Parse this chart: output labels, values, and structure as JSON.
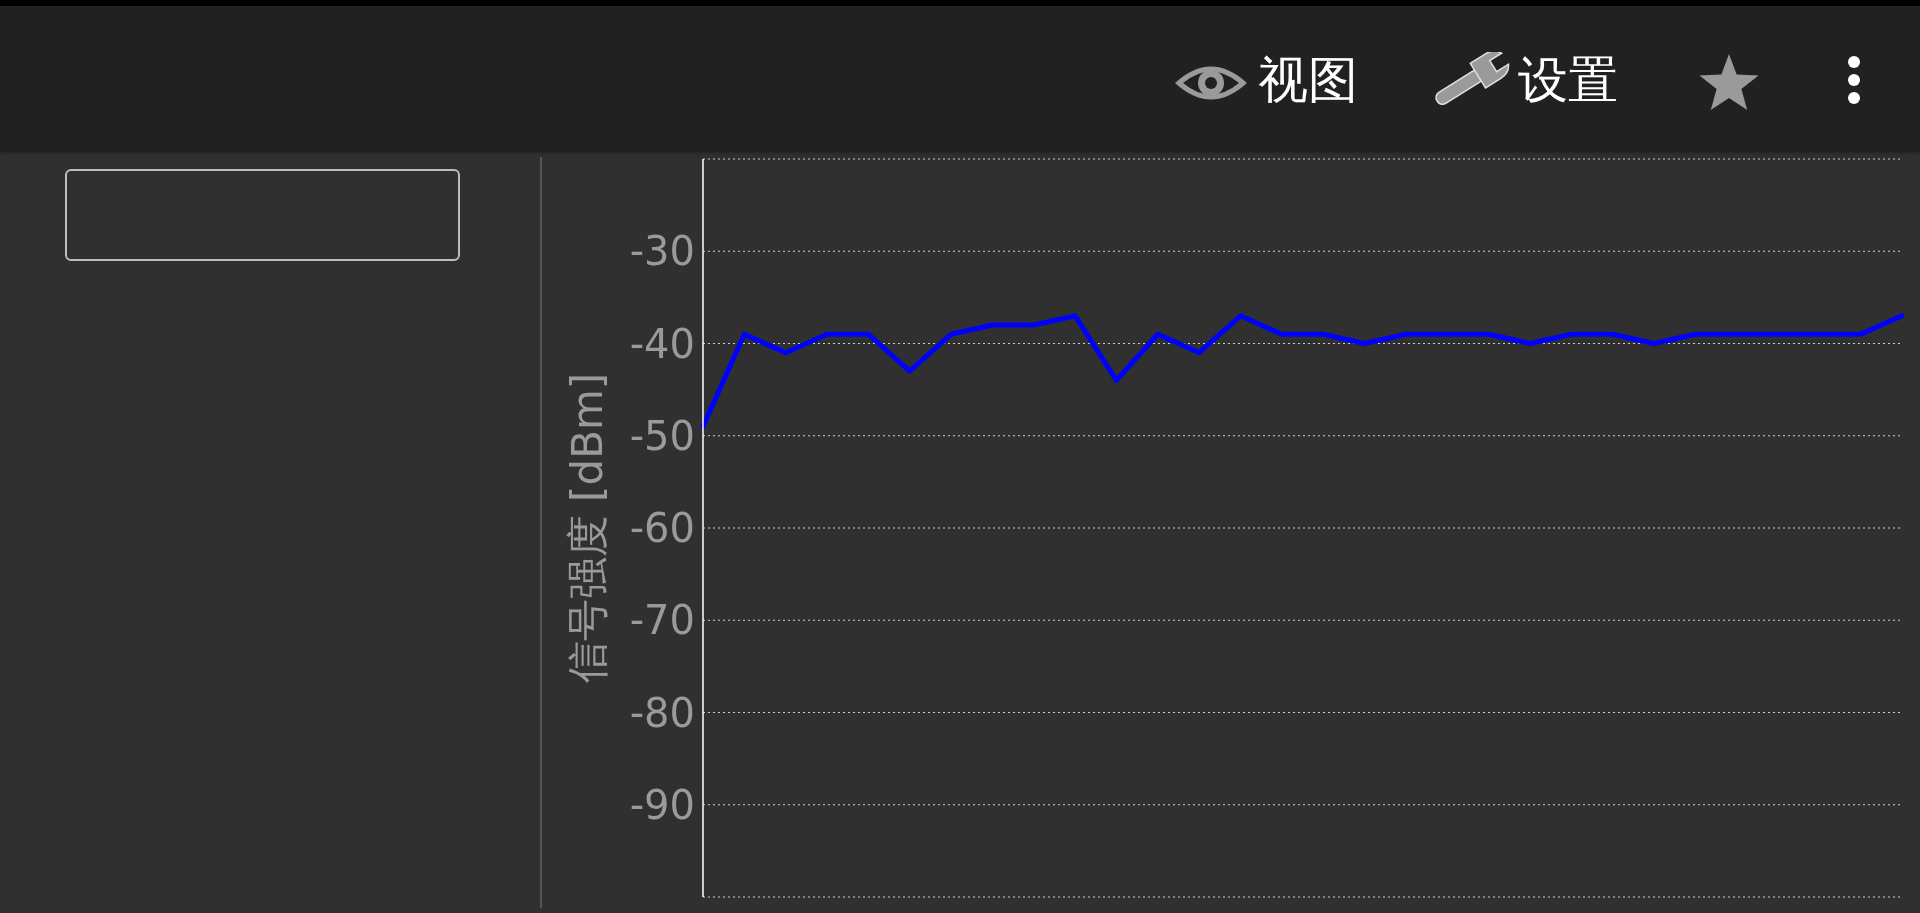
{
  "chart_data": {
    "type": "line",
    "ylabel": "信号强度 [dBm]",
    "categories": [
      null,
      null,
      null,
      null,
      null,
      null,
      null,
      null,
      null,
      null,
      null,
      null,
      null,
      null,
      null,
      null,
      null,
      null,
      null,
      null,
      null,
      null,
      null,
      null,
      null,
      null,
      null,
      null,
      null,
      null
    ],
    "series": [
      {
        "color": "#0000ff",
        "values": [
          -49,
          -39,
          -41,
          -39,
          -39,
          -43,
          -39,
          -38,
          -38,
          -37,
          -44,
          -39,
          -41,
          -37,
          -39,
          -39,
          -40,
          -39,
          -39,
          -39,
          -40,
          -39,
          -39,
          -40,
          -39,
          -39,
          -39,
          -39,
          -39,
          -37
        ]
      }
    ],
    "ylim": [
      -100,
      -20
    ],
    "yticks": [
      -30,
      -40,
      -50,
      -60,
      -70,
      -80,
      -90
    ],
    "grid": "y",
    "tick_labels": "y",
    "annotations": [
      "视图",
      "设置"
    ]
  }
}
